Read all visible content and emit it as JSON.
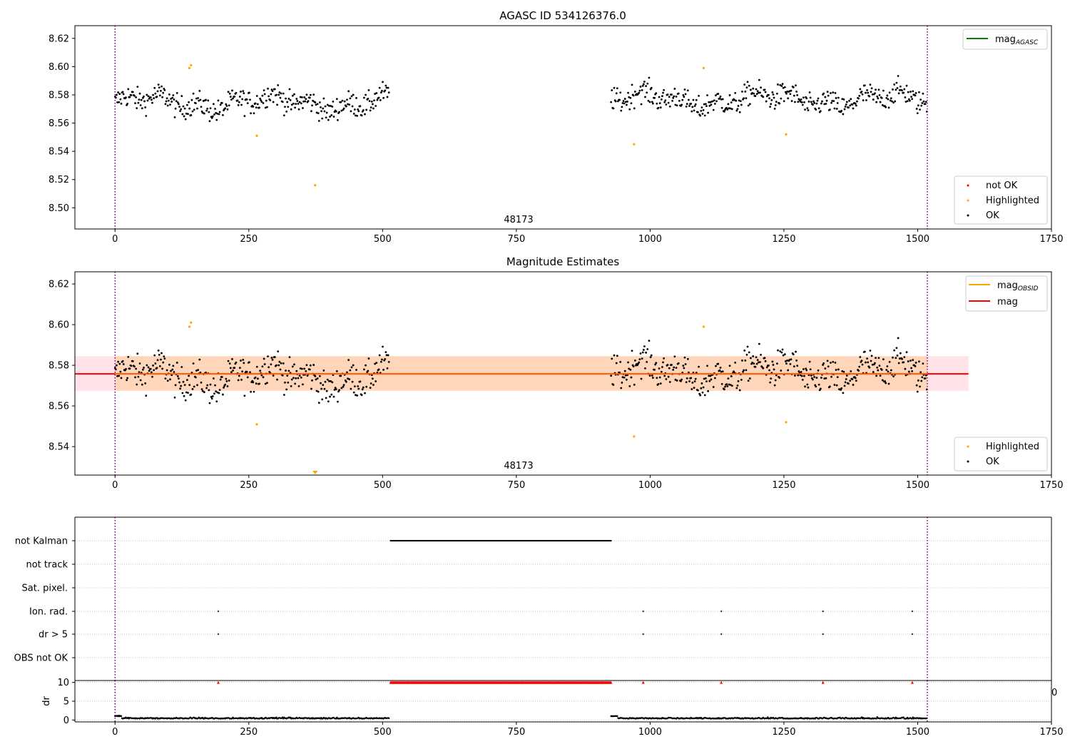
{
  "chart_data": [
    {
      "type": "scatter",
      "title": "AGASC ID 534126376.0",
      "xlim": [
        -75,
        1750
      ],
      "ylim": [
        8.485,
        8.629
      ],
      "xticks": [
        0,
        250,
        500,
        750,
        1000,
        1250,
        1500,
        1750
      ],
      "yticks": [
        8.5,
        8.52,
        8.54,
        8.56,
        8.58,
        8.6,
        8.62
      ],
      "xtick_labels": [
        "0",
        "250",
        "500",
        "750",
        "1000",
        "1250",
        "1500",
        "1750"
      ],
      "ytick_labels": [
        "8.50",
        "8.52",
        "8.54",
        "8.56",
        "8.58",
        "8.60",
        "8.62"
      ],
      "obsid_label": "48173",
      "obsid_boundaries": [
        0,
        1518
      ],
      "series": [
        {
          "name": "OK",
          "color": "#000000",
          "segments": [
            [
              0,
              512,
              8.5745
            ],
            [
              927,
              1518,
              8.5765
            ]
          ]
        },
        {
          "name": "Highlighted",
          "color": "#ffa500",
          "points": [
            [
              139,
              8.599
            ],
            [
              142,
              8.601
            ],
            [
              265,
              8.551
            ],
            [
              374,
              8.516
            ],
            [
              970,
              8.545
            ],
            [
              1100,
              8.599
            ],
            [
              1254,
              8.552
            ]
          ]
        },
        {
          "name": "not OK",
          "color": "#ff0000",
          "points": []
        }
      ],
      "line_series": [
        {
          "name": "mag",
          "subscript": "AGASC",
          "color": "#008000"
        }
      ],
      "legend_top": {
        "label": "mag",
        "subscript": "AGASC"
      },
      "legend_bottom": [
        {
          "label": "not OK",
          "color": "#ff0000"
        },
        {
          "label": "Highlighted",
          "color": "#ffa500"
        },
        {
          "label": "OK",
          "color": "#000000"
        }
      ]
    },
    {
      "type": "scatter",
      "title": "Magnitude Estimates",
      "xlim": [
        -75,
        1750
      ],
      "ylim": [
        8.526,
        8.626
      ],
      "xticks": [
        0,
        250,
        500,
        750,
        1000,
        1250,
        1500,
        1750
      ],
      "yticks": [
        8.54,
        8.56,
        8.58,
        8.6,
        8.62
      ],
      "xtick_labels": [
        "0",
        "250",
        "500",
        "750",
        "1000",
        "1250",
        "1500",
        "1750"
      ],
      "ytick_labels": [
        "8.54",
        "8.56",
        "8.58",
        "8.60",
        "8.62"
      ],
      "obsid_label": "48173",
      "obsid_boundaries": [
        0,
        1518
      ],
      "mag_line": 8.5758,
      "mag_band": [
        8.5675,
        8.5845
      ],
      "mag_band_xrange": [
        -75,
        1595
      ],
      "obsid_band_xrange": [
        0,
        1518
      ],
      "series": [
        {
          "name": "OK",
          "color": "#000000",
          "segments": [
            [
              0,
              512,
              8.5745
            ],
            [
              927,
              1518,
              8.5765
            ]
          ]
        },
        {
          "name": "Highlighted",
          "color": "#ffa500",
          "points": [
            [
              139,
              8.599
            ],
            [
              142,
              8.601
            ],
            [
              265,
              8.551
            ],
            [
              970,
              8.545
            ],
            [
              1100,
              8.599
            ],
            [
              1254,
              8.552
            ]
          ]
        }
      ],
      "below_range_marker": {
        "x": 374,
        "color": "#ffa500"
      },
      "legend_top": [
        {
          "label": "mag",
          "subscript": "OBSID",
          "color": "#ffa500"
        },
        {
          "label": "mag",
          "subscript": "",
          "color": "#ff0000"
        }
      ],
      "legend_bottom": [
        {
          "label": "Highlighted",
          "color": "#ffa500"
        },
        {
          "label": "OK",
          "color": "#000000"
        }
      ]
    },
    {
      "type": "scatter",
      "title": "",
      "xlim": [
        -75,
        1750
      ],
      "flag_rows": [
        "not Kalman",
        "not track",
        "Sat. pixel.",
        "Ion. rad.",
        "dr > 5",
        "OBS not OK"
      ],
      "flags": {
        "not Kalman": {
          "ranges": [
            [
              515,
              927
            ]
          ],
          "points": []
        },
        "not track": {
          "ranges": [],
          "points": []
        },
        "Sat. pixel.": {
          "ranges": [],
          "points": []
        },
        "Ion. rad.": {
          "ranges": [],
          "points": [
            193,
            987,
            1133,
            1323,
            1490
          ]
        },
        "dr > 5": {
          "ranges": [],
          "points": [
            193,
            987,
            1133,
            1323,
            1490
          ]
        },
        "OBS not OK": {
          "ranges": [],
          "points": []
        }
      },
      "obsid_boundaries": [
        0,
        1518
      ]
    },
    {
      "type": "scatter",
      "title": "",
      "ylabel": "dr",
      "xlim": [
        -75,
        1750
      ],
      "ylim": [
        -0.5,
        10.5
      ],
      "xticks": [
        0,
        250,
        500,
        750,
        1000,
        1250,
        1500,
        1750
      ],
      "xtick_labels": [
        "0",
        "250",
        "500",
        "750",
        "1000",
        "1250",
        "1500",
        "1750"
      ],
      "yticks": [
        0,
        5,
        10
      ],
      "ytick_labels": [
        "0",
        "5",
        "10"
      ],
      "clipped_label": "0",
      "dr_segments": [
        [
          0,
          512
        ],
        [
          927,
          1518
        ]
      ],
      "dr_clipped": {
        "value": 10,
        "color": "#ff0000",
        "points": [
          193,
          987,
          1133,
          1323,
          1490
        ],
        "ranges": [
          [
            515,
            927
          ]
        ]
      },
      "obsid_boundaries": [
        0,
        1518
      ]
    }
  ]
}
